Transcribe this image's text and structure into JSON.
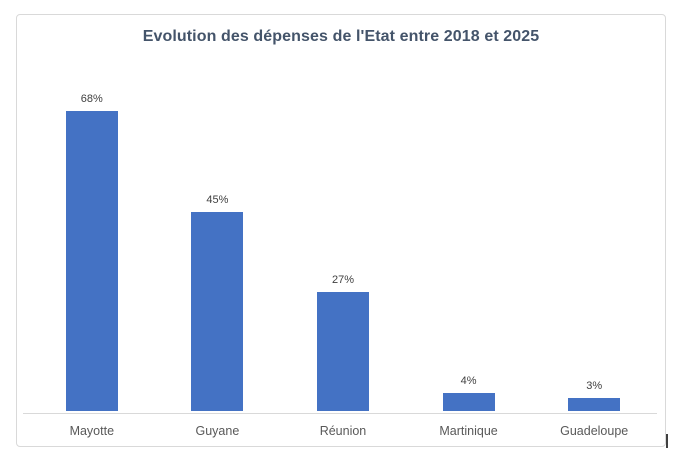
{
  "chart_data": {
    "type": "bar",
    "title": "Evolution des dépenses de l'Etat entre 2018 et 2025",
    "categories": [
      "Mayotte",
      "Guyane",
      "Réunion",
      "Martinique",
      "Guadeloupe"
    ],
    "values": [
      68,
      45,
      27,
      4,
      3
    ],
    "value_labels": [
      "68%",
      "45%",
      "27%",
      "4%",
      "3%"
    ],
    "xlabel": "",
    "ylabel": "",
    "ylim": [
      0,
      75
    ],
    "grid": false,
    "legend": false,
    "bar_color": "#4472C4",
    "title_color": "#44546A",
    "value_label_color": "#404040",
    "category_label_color": "#595959",
    "axis_line_color": "#D9D9D9",
    "frame_border_color": "#D9D9D9"
  }
}
